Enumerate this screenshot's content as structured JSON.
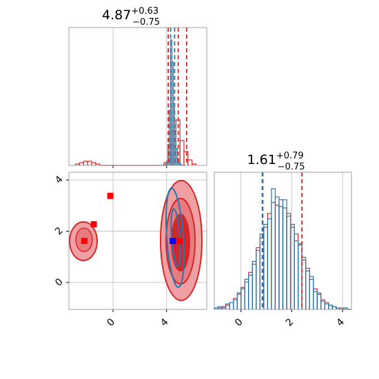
{
  "chart_data": [
    {
      "type": "histogram",
      "title": {
        "value": "4.87",
        "plus": "+0.63",
        "minus": "−0.75"
      },
      "xlim": [
        -3.3,
        7.0
      ],
      "ylim": [
        0,
        100
      ],
      "xticks": [
        0,
        4
      ],
      "tick_labels": false,
      "grid": true,
      "series": [
        {
          "color": "#d62728",
          "bins": [
            -2.8,
            -2.5,
            -2.2,
            -1.9,
            -1.6,
            -1.3,
            -1.0,
            -0.7,
            -0.4,
            -0.1,
            0.2,
            0.5,
            0.8,
            1.1,
            1.4,
            1.7,
            2.0,
            2.3,
            2.6,
            2.9,
            3.2,
            3.5,
            3.8,
            4.1,
            4.4,
            4.7,
            5.0,
            5.3,
            5.6,
            5.9,
            6.2
          ],
          "values": [
            1,
            2,
            3,
            3,
            2,
            1,
            0,
            0,
            0,
            0,
            0,
            0,
            0,
            0,
            0,
            0,
            0,
            0,
            0,
            0,
            0,
            0,
            2,
            15,
            25,
            33,
            18,
            10,
            4,
            1
          ]
        },
        {
          "color": "#1f77b4",
          "bins": [
            3.8,
            3.9,
            4.0,
            4.1,
            4.2,
            4.3,
            4.4,
            4.5,
            4.6,
            4.7,
            4.8,
            4.9,
            5.0,
            5.1,
            5.2,
            5.3,
            5.4
          ],
          "values": [
            0,
            1,
            3,
            10,
            40,
            91,
            75,
            45,
            25,
            12,
            5,
            2,
            1,
            0,
            0,
            0
          ]
        }
      ],
      "vlines": [
        {
          "color": "#d62728",
          "values": [
            4.12,
            4.87,
            5.5
          ]
        },
        {
          "color": "#1f77b4",
          "values": [
            4.3,
            4.6
          ]
        }
      ]
    },
    {
      "type": "scatter",
      "xlim": [
        -3.3,
        7.0
      ],
      "ylim": [
        -1.05,
        4.3
      ],
      "xticks": [
        0,
        4
      ],
      "yticks": [
        0,
        2,
        4
      ],
      "grid": true,
      "series": [
        {
          "color": "#ff0000",
          "x": [
            -0.2,
            -1.44,
            -2.15,
            4.97
          ],
          "values": [
            3.38,
            2.27,
            1.62,
            1.62
          ]
        },
        {
          "color": "#0000ff",
          "x": [
            4.46
          ],
          "values": [
            1.62
          ]
        }
      ]
    },
    {
      "type": "histogram",
      "title": {
        "value": "1.61",
        "plus": "+0.79",
        "minus": "−0.75"
      },
      "xlim": [
        -1.05,
        4.35
      ],
      "ylim": [
        0,
        100
      ],
      "xticks": [
        0,
        2,
        4
      ],
      "tick_labels": true,
      "grid": true,
      "series": [
        {
          "color": "#d62728",
          "bins": [
            -1.05,
            -0.9,
            -0.75,
            -0.6,
            -0.45,
            -0.3,
            -0.15,
            0,
            0.15,
            0.3,
            0.45,
            0.6,
            0.75,
            0.9,
            1.05,
            1.2,
            1.35,
            1.5,
            1.65,
            1.8,
            1.95,
            2.1,
            2.25,
            2.4,
            2.55,
            2.7,
            2.85,
            3.0,
            3.15,
            3.3,
            3.45,
            3.6,
            3.75,
            3.9,
            4.05,
            4.2,
            4.35
          ],
          "values": [
            1,
            1,
            2,
            3,
            5,
            8,
            11,
            16,
            20,
            27,
            33,
            45,
            52,
            60,
            70,
            78,
            76,
            80,
            74,
            70,
            60,
            55,
            47,
            36,
            30,
            22,
            15,
            11,
            7,
            5,
            3,
            2,
            1,
            1,
            0,
            0
          ]
        },
        {
          "color": "#1f77b4",
          "bins": [
            -1.05,
            -0.9,
            -0.75,
            -0.6,
            -0.45,
            -0.3,
            -0.15,
            0,
            0.15,
            0.3,
            0.45,
            0.6,
            0.75,
            0.9,
            1.05,
            1.2,
            1.35,
            1.5,
            1.65,
            1.8,
            1.95,
            2.1,
            2.25,
            2.4,
            2.55,
            2.7,
            2.85,
            3.0,
            3.15,
            3.3,
            3.45,
            3.6,
            3.75,
            3.9,
            4.05,
            4.2,
            4.35
          ],
          "values": [
            1,
            2,
            1,
            4,
            5,
            7,
            12,
            15,
            22,
            25,
            35,
            43,
            55,
            62,
            66,
            88,
            82,
            75,
            80,
            68,
            62,
            50,
            48,
            38,
            28,
            24,
            13,
            12,
            6,
            4,
            3,
            2,
            1,
            0,
            1,
            0
          ]
        }
      ],
      "vlines": [
        {
          "color": "#d62728",
          "values": [
            0.86,
            2.4
          ]
        },
        {
          "color": "#1f77b4",
          "values": [
            0.84
          ]
        }
      ]
    }
  ]
}
